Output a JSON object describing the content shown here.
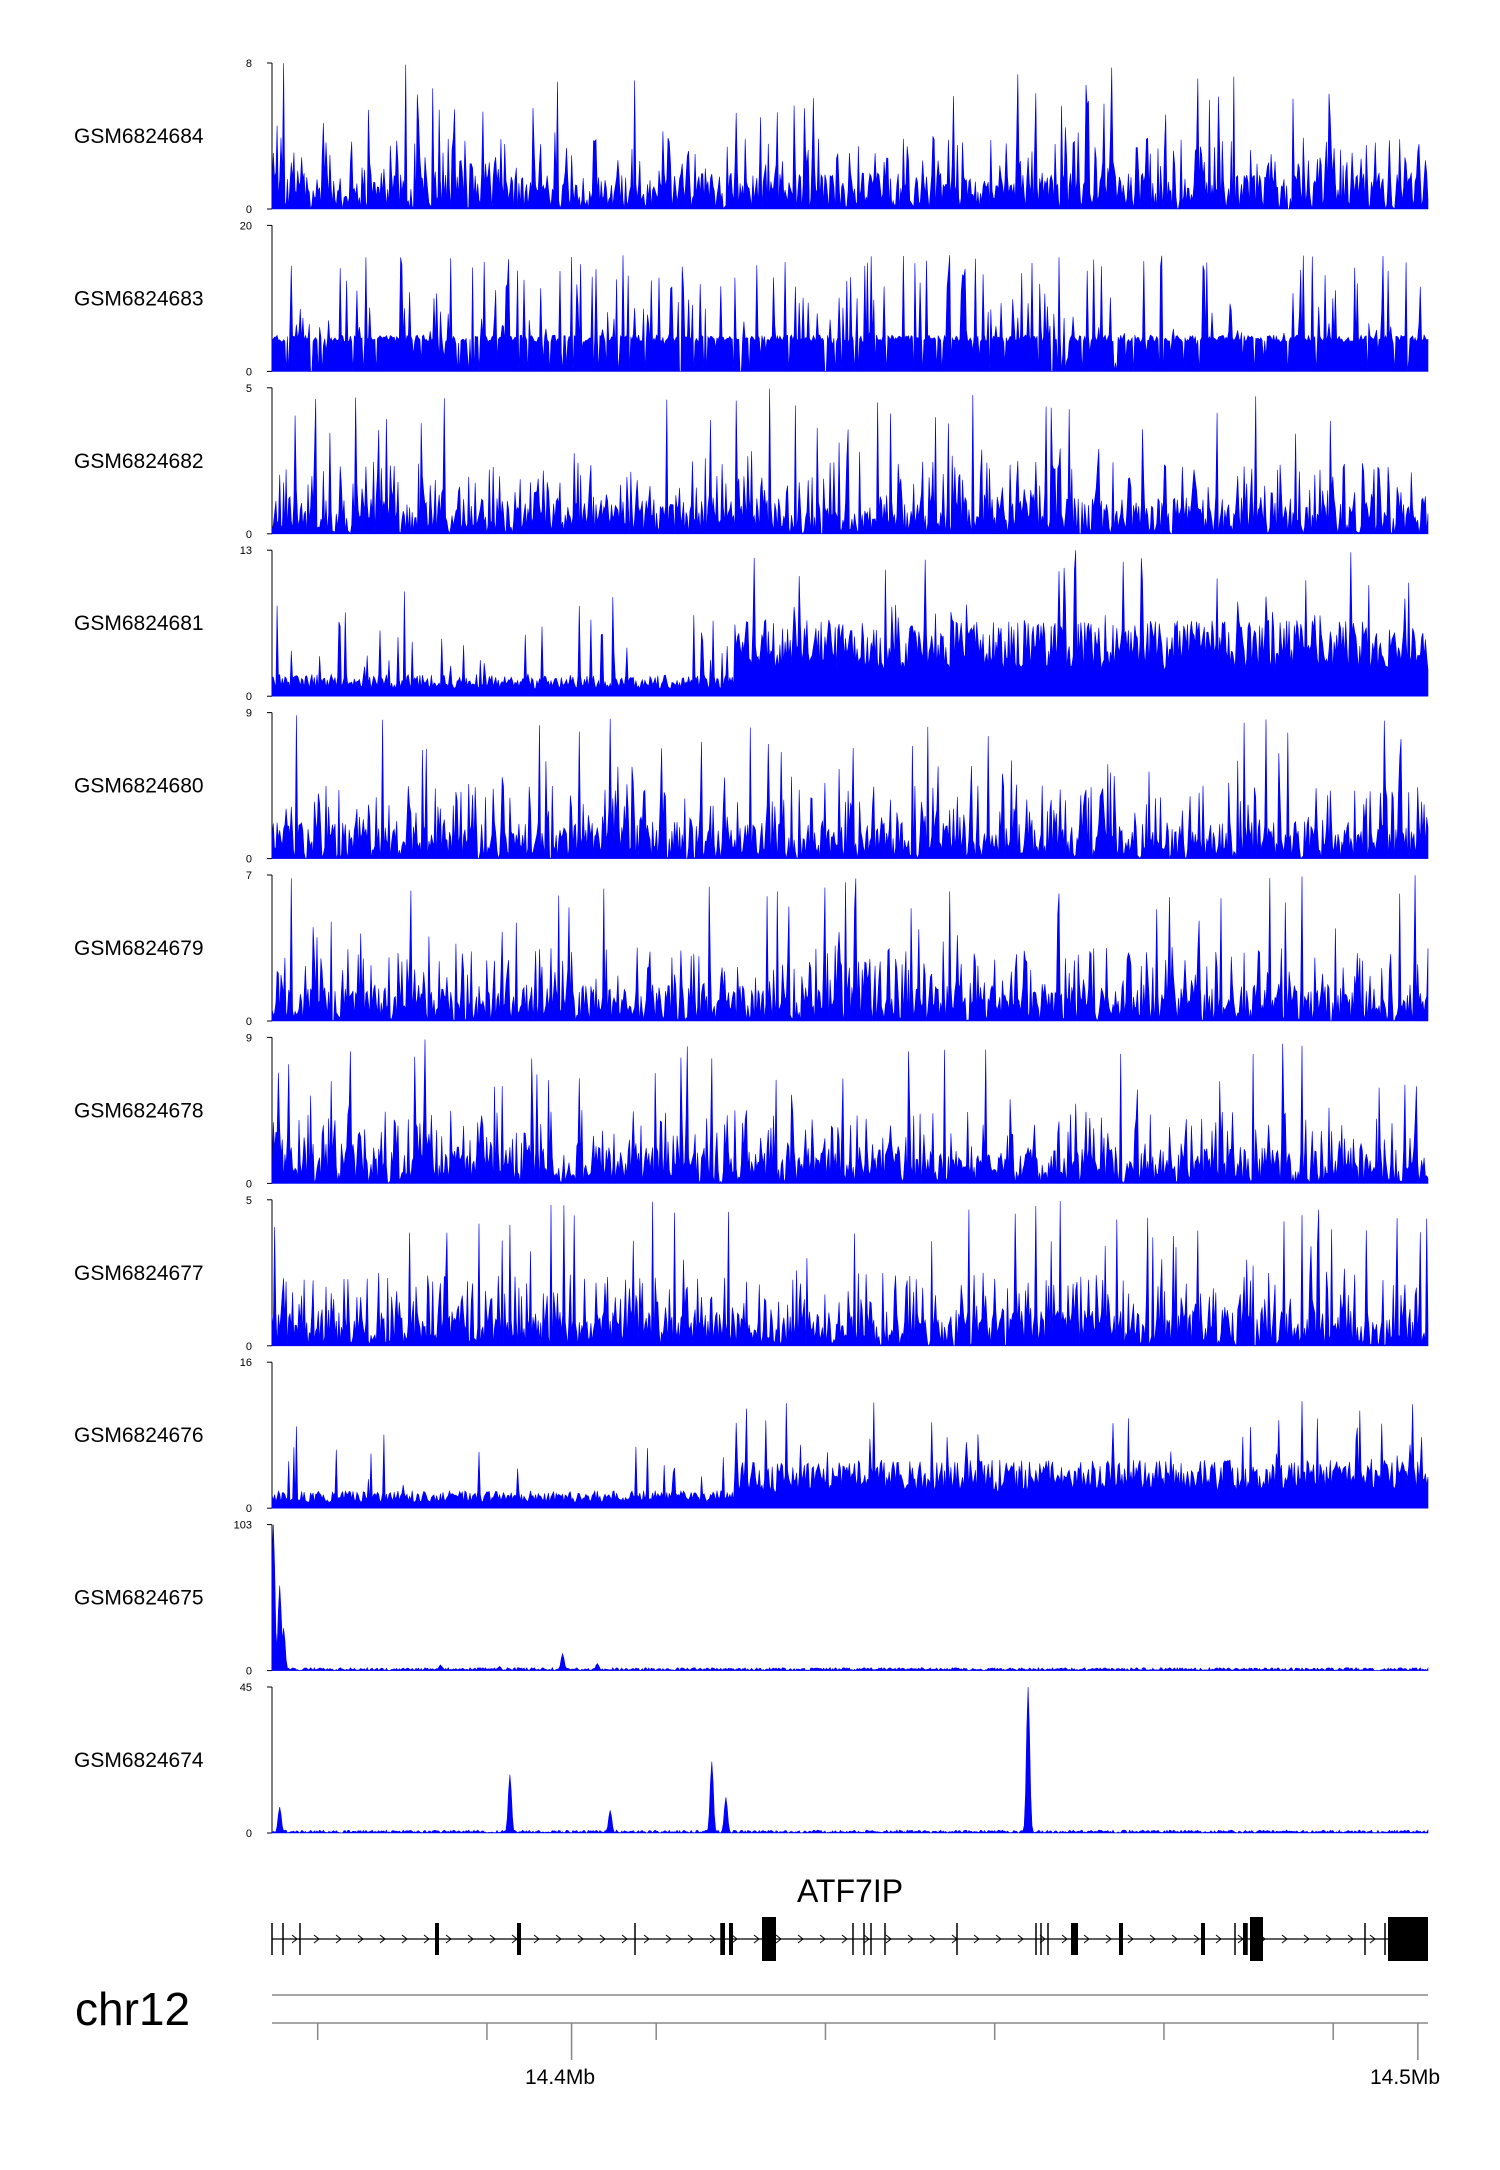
{
  "chart_data": {
    "type": "area",
    "chromosome": "chr12",
    "gene": "ATF7IP",
    "x_ticks": [
      "14.4Mb",
      "14.5Mb"
    ],
    "series": [
      {
        "name": "GSM6824684",
        "ymax": 8,
        "pattern": "spiky",
        "peaks": []
      },
      {
        "name": "GSM6824683",
        "ymax": 20,
        "pattern": "sparse",
        "peaks": []
      },
      {
        "name": "GSM6824682",
        "ymax": 5,
        "pattern": "spiky",
        "peaks": []
      },
      {
        "name": "GSM6824681",
        "ymax": 13,
        "pattern": "dense",
        "peaks": []
      },
      {
        "name": "GSM6824680",
        "ymax": 9,
        "pattern": "spiky",
        "peaks": []
      },
      {
        "name": "GSM6824679",
        "ymax": 7,
        "pattern": "spiky",
        "peaks": []
      },
      {
        "name": "GSM6824678",
        "ymax": 9,
        "pattern": "spiky",
        "peaks": []
      },
      {
        "name": "GSM6824677",
        "ymax": 5,
        "pattern": "spiky",
        "peaks": []
      },
      {
        "name": "GSM6824676",
        "ymax": 16,
        "pattern": "dense2",
        "peaks": []
      },
      {
        "name": "GSM6824675",
        "ymax": 103,
        "pattern": "flat",
        "peaks": [
          [
            14.3648,
            103
          ],
          [
            14.3655,
            60
          ],
          [
            14.366,
            30
          ],
          [
            14.399,
            12
          ],
          [
            14.403,
            5
          ],
          [
            14.3845,
            4
          ],
          [
            14.3915,
            3
          ]
        ]
      },
      {
        "name": "GSM6824674",
        "ymax": 45,
        "pattern": "flat",
        "peaks": [
          [
            14.454,
            45
          ],
          [
            14.3927,
            18
          ],
          [
            14.4166,
            22
          ],
          [
            14.4183,
            11
          ],
          [
            14.4045,
            7
          ],
          [
            14.3655,
            8
          ]
        ]
      }
    ],
    "color": "#0000ff"
  }
}
